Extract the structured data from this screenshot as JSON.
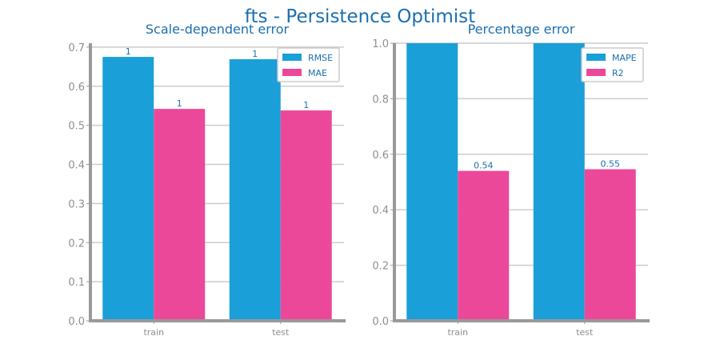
{
  "figure": {
    "title": "fts - Persistence Optimist",
    "title_color": "#1a6faf",
    "bar_colors": [
      "#1a9fd8",
      "#ec4899"
    ],
    "axis_color": "#999999",
    "grid_color": "#cccccc",
    "label_color": "#1a6faf"
  },
  "chart_data": [
    {
      "type": "bar",
      "title": "Scale-dependent error",
      "categories": [
        "train",
        "test"
      ],
      "series": [
        {
          "name": "RMSE",
          "values": [
            0.675,
            0.669
          ],
          "labels": [
            "1",
            "1"
          ]
        },
        {
          "name": "MAE",
          "values": [
            0.542,
            0.538
          ],
          "labels": [
            "1",
            "1"
          ]
        }
      ],
      "ylim": [
        0,
        0.71
      ],
      "yticks": [
        0.0,
        0.1,
        0.2,
        0.3,
        0.4,
        0.5,
        0.6,
        0.7
      ],
      "ytick_labels": [
        "0.0",
        "0.1",
        "0.2",
        "0.3",
        "0.4",
        "0.5",
        "0.6",
        "0.7"
      ],
      "grid": true,
      "legend": "top-right"
    },
    {
      "type": "bar",
      "title": "Percentage error",
      "categories": [
        "train",
        "test"
      ],
      "series": [
        {
          "name": "MAPE",
          "values": [
            1.0,
            1.0
          ],
          "labels": [
            "",
            ""
          ]
        },
        {
          "name": "R2",
          "values": [
            0.54,
            0.546
          ],
          "labels": [
            "0.54",
            "0.55"
          ]
        }
      ],
      "ylim": [
        0,
        1.0
      ],
      "yticks": [
        0.0,
        0.2,
        0.4,
        0.6,
        0.8,
        1.0
      ],
      "ytick_labels": [
        "0.0",
        "0.2",
        "0.4",
        "0.6",
        "0.8",
        "1.0"
      ],
      "grid": true,
      "legend": "top-right"
    }
  ]
}
